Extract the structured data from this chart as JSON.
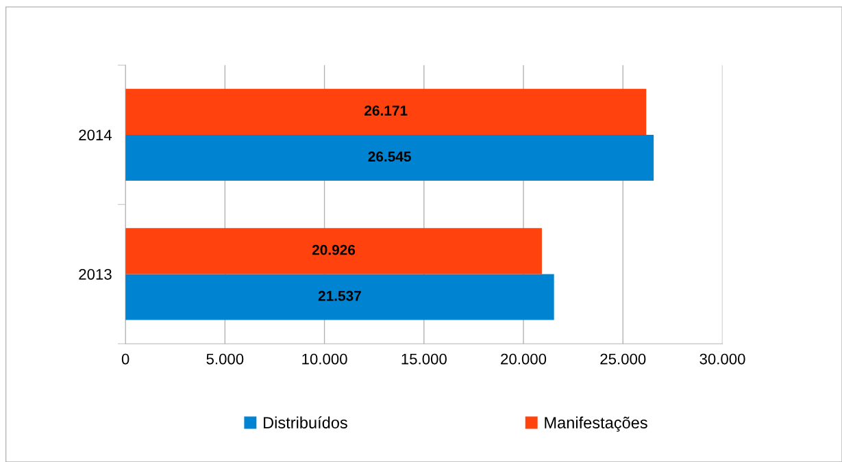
{
  "chart_data": {
    "type": "bar",
    "orientation": "horizontal",
    "categories": [
      "2014",
      "2013"
    ],
    "series": [
      {
        "name": "Distribuídos",
        "color": "#0084d1",
        "values": [
          26545,
          21537
        ],
        "value_labels": [
          "26.545",
          "21.537"
        ]
      },
      {
        "name": "Manifestações",
        "color": "#ff420e",
        "values": [
          26171,
          20926
        ],
        "value_labels": [
          "26.171",
          "20.926"
        ]
      }
    ],
    "xlim": [
      0,
      30000
    ],
    "xticks": [
      0,
      {
        "value": 5000,
        "label": "5.000"
      },
      {
        "value": 10000,
        "label": "10.000"
      },
      {
        "value": 15000,
        "label": "15.000"
      },
      {
        "value": 20000,
        "label": "20.000"
      },
      {
        "value": 25000,
        "label": "25.000"
      },
      {
        "value": 30000,
        "label": "30.000"
      }
    ],
    "grid": "x",
    "legend": "bottom"
  }
}
